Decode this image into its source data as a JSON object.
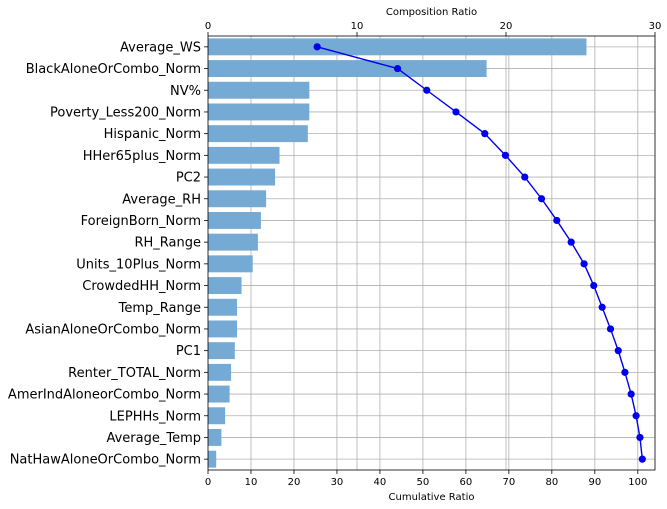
{
  "chart_data": {
    "type": "bar",
    "orientation": "horizontal",
    "top_axis": {
      "label": "Composition Ratio",
      "range": [
        0,
        30
      ],
      "ticks": [
        "0",
        "10",
        "20",
        "30"
      ]
    },
    "bottom_axis": {
      "label": "Cumulative Ratio",
      "range": [
        0,
        104
      ],
      "ticks": [
        "0",
        "10",
        "20",
        "30",
        "40",
        "50",
        "60",
        "70",
        "80",
        "90",
        "100"
      ]
    },
    "categories": [
      "Average_WS",
      "BlackAloneOrCombo_Norm",
      "NV%",
      "Poverty_Less200_Norm",
      "Hispanic_Norm",
      "HHer65plus_Norm",
      "PC2",
      "Average_RH",
      "ForeignBorn_Norm",
      "RH_Range",
      "Units_10Plus_Norm",
      "CrowdedHH_Norm",
      "Temp_Range",
      "AsianAloneOrCombo_Norm",
      "PC1",
      "Renter_TOTAL_Norm",
      "AmerIndAloneorCombo_Norm",
      "LEPHHs_Norm",
      "Average_Temp",
      "NatHawAloneOrCombo_Norm"
    ],
    "bar_values": [
      25.4,
      18.7,
      6.8,
      6.8,
      6.7,
      4.8,
      4.5,
      3.9,
      3.55,
      3.35,
      3.0,
      2.25,
      1.95,
      1.95,
      1.8,
      1.55,
      1.45,
      1.15,
      0.9,
      0.55
    ],
    "cumulative_values": [
      25.4,
      44.1,
      50.9,
      57.7,
      64.4,
      69.2,
      73.7,
      77.6,
      81.15,
      84.5,
      87.5,
      89.75,
      91.7,
      93.65,
      95.45,
      97.0,
      98.45,
      99.6,
      100.5,
      101.05
    ],
    "bar_color": "#74aad4",
    "line_color": "#0000ee",
    "grid": true
  }
}
